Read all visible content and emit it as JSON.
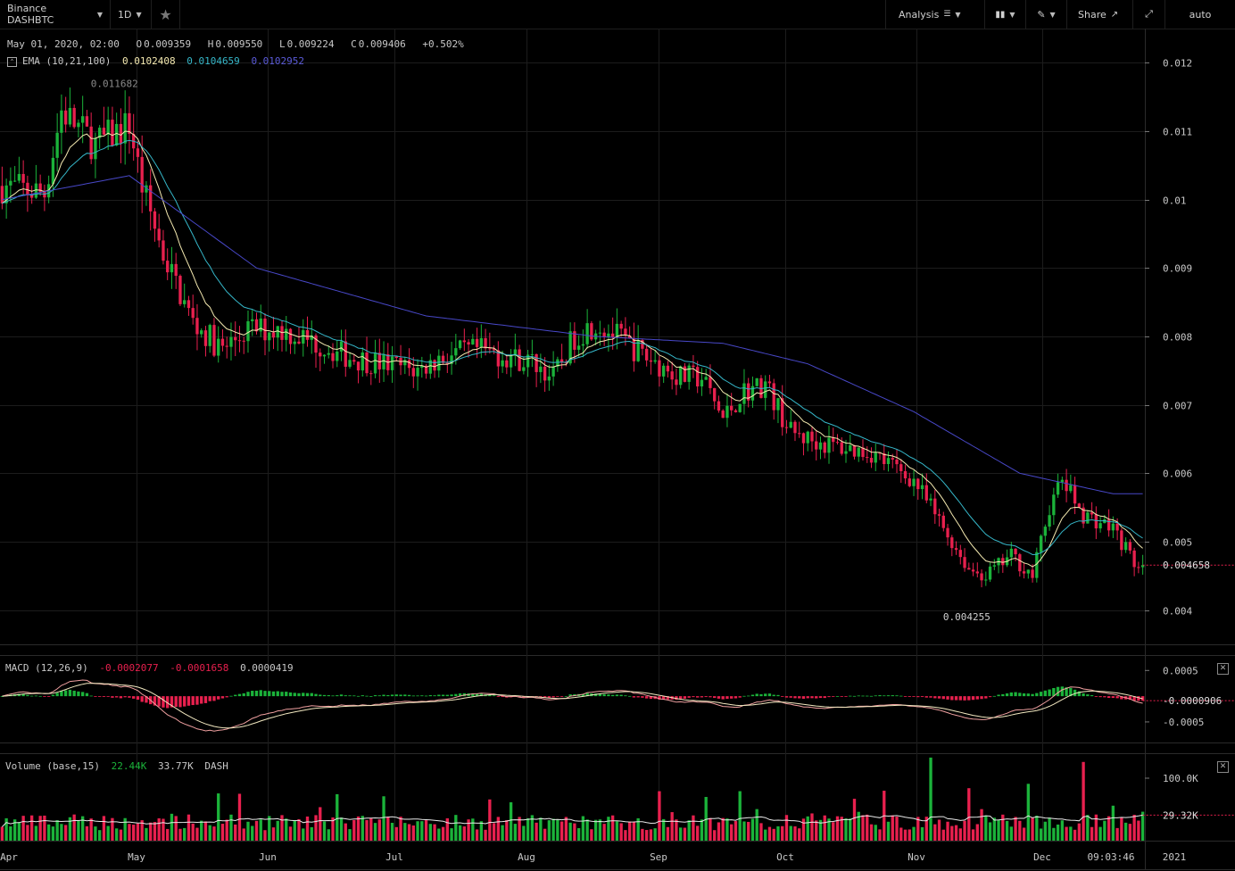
{
  "toolbar": {
    "symbol": "Binance DASHBTC",
    "interval": "1D",
    "analysis": "Analysis",
    "share": "Share",
    "scale_mode": "auto",
    "star_icon": "star-icon",
    "indicators_icon": "bar-chart-icon",
    "draw_icon": "pencil-icon",
    "fullscreen_icon": "expand-icon"
  },
  "ohlc": {
    "date": "May 01, 2020, 02:00",
    "open_label": "O",
    "open": "0.009359",
    "high_label": "H",
    "high": "0.009550",
    "low_label": "L",
    "low": "0.009224",
    "close_label": "C",
    "close": "0.009406",
    "change": "+0.502%"
  },
  "ema_legend": {
    "label": "EMA (10,21,100)",
    "v1": "0.0102408",
    "v2": "0.0104659",
    "v3": "0.0102952"
  },
  "macd_legend": {
    "label": "MACD (12,26,9)",
    "macd": "-0.0002077",
    "signal": "-0.0001658",
    "hist": "0.0000419"
  },
  "volume_legend": {
    "label": "Volume (base,15)",
    "v": "22.44K",
    "ma": "33.77K",
    "unit": "DASH"
  },
  "time_label": "09:03:46",
  "colors": {
    "up": "#1bb33a",
    "down": "#e8204e",
    "ema10": "#f4e9b0",
    "ema21": "#35b6c8",
    "ema100": "#4848c8",
    "macd": "#f0a0a0",
    "signal": "#f2e8c0"
  },
  "chart_data": {
    "type": "candlestick",
    "price_axis": {
      "ticks": [
        0.012,
        0.011,
        0.01,
        0.009,
        0.008,
        0.007,
        0.006,
        0.005,
        0.004
      ],
      "labels": [
        "0.012",
        "0.011",
        "0.01",
        "0.009",
        "0.008",
        "0.007",
        "0.006",
        "0.005",
        "0.004"
      ],
      "range": [
        0.0035,
        0.0125
      ]
    },
    "time_axis": [
      "Apr",
      "May",
      "Jun",
      "Jul",
      "Aug",
      "Sep",
      "Oct",
      "Nov",
      "Dec",
      "2021"
    ],
    "last_price": 0.004658,
    "last_price_label": "0.004658",
    "high_marker": {
      "value": 0.011682,
      "label": "0.011682"
    },
    "low_marker": {
      "value": 0.004255,
      "label": "0.004255"
    },
    "close_path": [
      [
        0,
        0.0102
      ],
      [
        10,
        0.0101
      ],
      [
        14,
        0.0113
      ],
      [
        22,
        0.0108
      ],
      [
        30,
        0.0111
      ],
      [
        33,
        0.0102
      ],
      [
        38,
        0.0092
      ],
      [
        45,
        0.0082
      ],
      [
        52,
        0.0078
      ],
      [
        58,
        0.0081
      ],
      [
        66,
        0.0081
      ],
      [
        74,
        0.0079
      ],
      [
        82,
        0.0077
      ],
      [
        90,
        0.0076
      ],
      [
        98,
        0.0075
      ],
      [
        104,
        0.0077
      ],
      [
        112,
        0.0078
      ],
      [
        120,
        0.0077
      ],
      [
        126,
        0.0076
      ],
      [
        130,
        0.0074
      ],
      [
        135,
        0.008
      ],
      [
        140,
        0.0082
      ],
      [
        145,
        0.008
      ],
      [
        152,
        0.0077
      ],
      [
        160,
        0.0074
      ],
      [
        165,
        0.0074
      ],
      [
        170,
        0.0068
      ],
      [
        175,
        0.0072
      ],
      [
        180,
        0.0073
      ],
      [
        186,
        0.0066
      ],
      [
        190,
        0.0065
      ],
      [
        196,
        0.0064
      ],
      [
        205,
        0.0063
      ],
      [
        215,
        0.0059
      ],
      [
        222,
        0.0052
      ],
      [
        228,
        0.0046
      ],
      [
        232,
        0.0045
      ],
      [
        238,
        0.0048
      ],
      [
        243,
        0.0045
      ],
      [
        247,
        0.0055
      ],
      [
        250,
        0.0059
      ],
      [
        255,
        0.0054
      ],
      [
        262,
        0.0052
      ],
      [
        266,
        0.0048
      ],
      [
        268,
        0.0046
      ]
    ],
    "ema100_path": [
      [
        0,
        0.01
      ],
      [
        30,
        0.01035
      ],
      [
        60,
        0.009
      ],
      [
        100,
        0.0083
      ],
      [
        140,
        0.008
      ],
      [
        170,
        0.0079
      ],
      [
        190,
        0.0076
      ],
      [
        215,
        0.0069
      ],
      [
        240,
        0.006
      ],
      [
        262,
        0.0057
      ]
    ],
    "macd_axis": {
      "ticks": [
        0.0005,
        -0.0005
      ],
      "labels": [
        "0.0005",
        "-0.0005"
      ],
      "last_value": "-0.0000906",
      "range": [
        -0.0009,
        0.0008
      ]
    },
    "volume_axis": {
      "ticks": [
        100000
      ],
      "labels": [
        "100.0K"
      ],
      "ma_value": "29.32K",
      "range": [
        0,
        140000
      ]
    },
    "volume_spikes": [
      [
        219,
        0.95
      ],
      [
        228,
        0.6
      ],
      [
        242,
        0.65
      ],
      [
        255,
        0.9
      ],
      [
        262,
        0.4
      ]
    ]
  }
}
